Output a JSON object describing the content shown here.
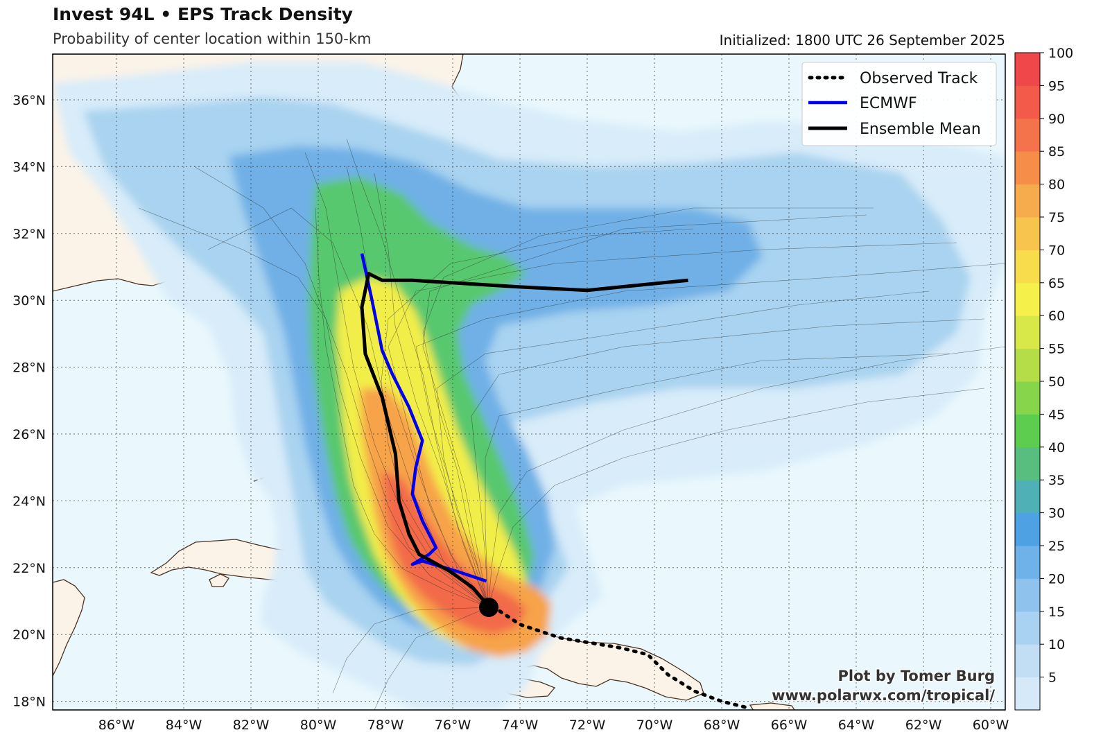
{
  "header": {
    "title": "Invest 94L • EPS Track Density",
    "subtitle": "Probability of center location within 150-km",
    "initialized": "Initialized: 1800 UTC 26 September 2025"
  },
  "map": {
    "lon_labels": [
      "86°W",
      "84°W",
      "82°W",
      "80°W",
      "78°W",
      "76°W",
      "74°W",
      "72°W",
      "70°W",
      "68°W",
      "66°W",
      "64°W",
      "62°W",
      "60°W"
    ],
    "lat_labels": [
      "36°N",
      "34°N",
      "32°N",
      "30°N",
      "28°N",
      "26°N",
      "24°N",
      "22°N",
      "20°N",
      "18°N"
    ],
    "ocean_color": "#eaf8fd",
    "land_color": "#fbf3e8",
    "coast_color": "#4a3020"
  },
  "legend": {
    "observed": "Observed Track",
    "ecmwf": "ECMWF",
    "mean": "Ensemble Mean"
  },
  "colorbar": {
    "ticks": [
      "100",
      "95",
      "90",
      "85",
      "80",
      "75",
      "70",
      "65",
      "60",
      "55",
      "50",
      "45",
      "40",
      "35",
      "30",
      "25",
      "20",
      "15",
      "10",
      "5"
    ]
  },
  "credit": {
    "line1": "Plot by Tomer Burg",
    "line2": "www.polarwx.com/tropical/"
  },
  "tracks": {
    "observed": [
      [
        -74.6,
        20.7
      ],
      [
        -74.0,
        20.3
      ],
      [
        -72.8,
        19.9
      ],
      [
        -71.0,
        19.6
      ],
      [
        -70.2,
        19.4
      ],
      [
        -69.6,
        18.8
      ],
      [
        -68.8,
        18.3
      ],
      [
        -68.0,
        18.0
      ],
      [
        -67.2,
        17.8
      ]
    ],
    "ecmwf": [
      [
        -78.7,
        31.4
      ],
      [
        -78.4,
        30.0
      ],
      [
        -78.1,
        28.5
      ],
      [
        -77.8,
        27.8
      ],
      [
        -77.3,
        26.8
      ],
      [
        -76.9,
        25.8
      ],
      [
        -77.1,
        25.0
      ],
      [
        -77.2,
        24.2
      ],
      [
        -76.9,
        23.4
      ],
      [
        -76.5,
        22.6
      ],
      [
        -76.7,
        22.4
      ],
      [
        -77.2,
        22.1
      ],
      [
        -76.9,
        22.2
      ],
      [
        -75.9,
        21.9
      ],
      [
        -75.0,
        21.6
      ]
    ],
    "mean": [
      [
        -74.8,
        20.7
      ],
      [
        -75.4,
        21.4
      ],
      [
        -76.1,
        21.9
      ],
      [
        -77.0,
        22.4
      ],
      [
        -77.3,
        23.0
      ],
      [
        -77.6,
        24.0
      ],
      [
        -77.7,
        25.4
      ],
      [
        -78.1,
        27.1
      ],
      [
        -78.6,
        28.4
      ],
      [
        -78.7,
        29.8
      ],
      [
        -78.5,
        30.8
      ],
      [
        -78.1,
        30.6
      ],
      [
        -77.2,
        30.6
      ],
      [
        -74.0,
        30.4
      ],
      [
        -72.0,
        30.3
      ],
      [
        -69.0,
        30.6
      ]
    ]
  }
}
